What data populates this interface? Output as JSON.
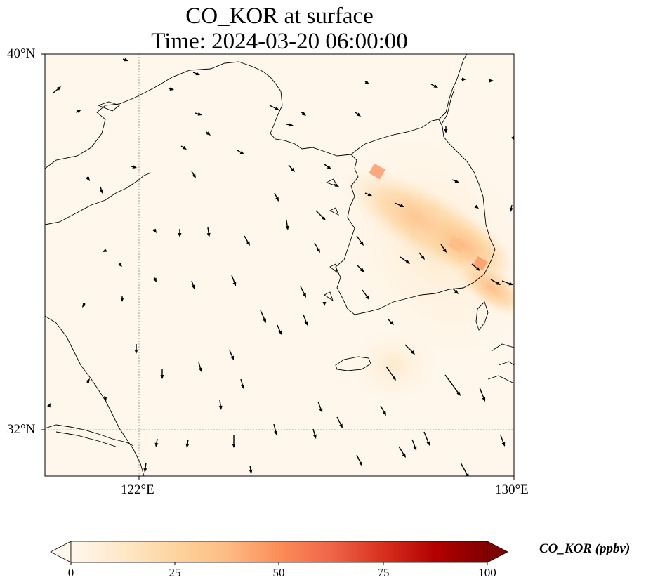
{
  "title": {
    "line1": "CO_KOR at surface",
    "line2": "Time: 2024-03-20 06:00:00"
  },
  "axes": {
    "lat_labels": [
      "40°N",
      "32°N"
    ],
    "lon_labels": [
      "122°E",
      "130°E"
    ],
    "lon_range": [
      120,
      130
    ],
    "lat_range": [
      31,
      40
    ]
  },
  "colorbar": {
    "label": "CO_KOR (ppbv)",
    "ticks": [
      "0",
      "25",
      "50",
      "75",
      "100"
    ],
    "range": [
      0,
      100
    ],
    "extend": "both",
    "colormap": [
      "#fff7ec",
      "#fee8c8",
      "#fdd49e",
      "#fdbb84",
      "#fc8d59",
      "#ef6548",
      "#d7301f",
      "#b30000",
      "#7f0000"
    ]
  },
  "field": {
    "description_units": "ppbv",
    "max_value": 45
  },
  "colors": {
    "coast": "#000000",
    "grid": "#888888",
    "wind_arrow": "#000000"
  }
}
